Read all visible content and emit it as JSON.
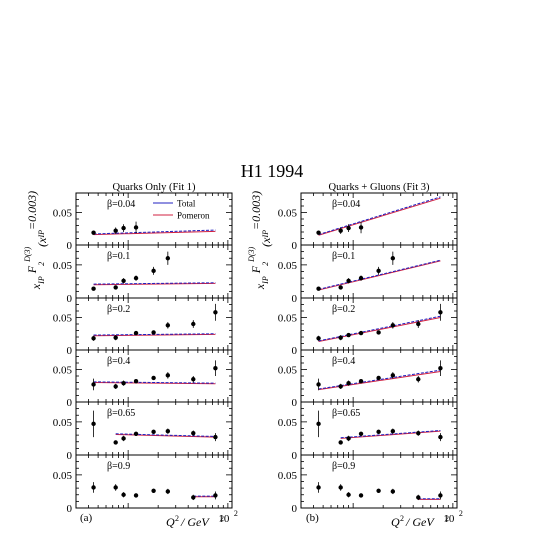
{
  "title": "H1 1994",
  "ylabel": {
    "parts": [
      "x",
      "IP",
      " F",
      "2",
      "D(3)",
      "(x",
      "IP",
      "=0.003)"
    ]
  },
  "xlabel": {
    "q": "Q",
    "sup": "2",
    "slash": "/ GeV",
    "sup2": "2"
  },
  "tick_labels": {
    "y": [
      "0.05",
      "0"
    ],
    "x_exp_base": "10",
    "x_exp_power": "2"
  },
  "legend": {
    "total": "Total",
    "pomeron": "Pomeron"
  },
  "colors": {
    "total": "#2020c0",
    "pomeron": "#d02040",
    "points": "#000000"
  },
  "chart_data": [
    {
      "type": "scatter",
      "panel_label": "(a)",
      "title": "Quarks Only (Fit 1)",
      "xscale": "log",
      "xlim": [
        3,
        110
      ],
      "ylim": [
        0,
        0.08
      ],
      "rows": [
        {
          "beta_label": "β=0.04",
          "points": [
            {
              "x": 4.5,
              "y": 0.019,
              "err": 0.003
            },
            {
              "x": 7.5,
              "y": 0.022,
              "err": 0.005
            },
            {
              "x": 9,
              "y": 0.026,
              "err": 0.006
            },
            {
              "x": 12,
              "y": 0.027,
              "err": 0.009
            }
          ],
          "total_line": [
            [
              4.5,
              0.017
            ],
            [
              75,
              0.023
            ]
          ],
          "pomeron_line": [
            [
              4.5,
              0.016
            ],
            [
              75,
              0.021
            ]
          ]
        },
        {
          "beta_label": "β=0.1",
          "points": [
            {
              "x": 4.5,
              "y": 0.014,
              "err": 0.002
            },
            {
              "x": 7.5,
              "y": 0.016,
              "err": 0.003
            },
            {
              "x": 9,
              "y": 0.026,
              "err": 0.004
            },
            {
              "x": 12,
              "y": 0.03,
              "err": 0.004
            },
            {
              "x": 18,
              "y": 0.041,
              "err": 0.006
            },
            {
              "x": 25,
              "y": 0.06,
              "err": 0.01
            }
          ],
          "total_line": [
            [
              4.5,
              0.021
            ],
            [
              75,
              0.023
            ]
          ],
          "pomeron_line": [
            [
              4.5,
              0.02
            ],
            [
              75,
              0.022
            ]
          ]
        },
        {
          "beta_label": "β=0.2",
          "points": [
            {
              "x": 4.5,
              "y": 0.018,
              "err": 0.004
            },
            {
              "x": 7.5,
              "y": 0.019,
              "err": 0.004
            },
            {
              "x": 12,
              "y": 0.026,
              "err": 0.003
            },
            {
              "x": 18,
              "y": 0.027,
              "err": 0.003
            },
            {
              "x": 25,
              "y": 0.038,
              "err": 0.005
            },
            {
              "x": 45,
              "y": 0.04,
              "err": 0.006
            },
            {
              "x": 75,
              "y": 0.058,
              "err": 0.013
            }
          ],
          "total_line": [
            [
              4.5,
              0.023
            ],
            [
              75,
              0.025
            ]
          ],
          "pomeron_line": [
            [
              4.5,
              0.022
            ],
            [
              75,
              0.024
            ]
          ]
        },
        {
          "beta_label": "β=0.4",
          "points": [
            {
              "x": 4.5,
              "y": 0.027,
              "err": 0.009
            },
            {
              "x": 7.5,
              "y": 0.024,
              "err": 0.004
            },
            {
              "x": 9,
              "y": 0.029,
              "err": 0.004
            },
            {
              "x": 12,
              "y": 0.032,
              "err": 0.003
            },
            {
              "x": 18,
              "y": 0.037,
              "err": 0.003
            },
            {
              "x": 25,
              "y": 0.041,
              "err": 0.005
            },
            {
              "x": 45,
              "y": 0.035,
              "err": 0.005
            },
            {
              "x": 75,
              "y": 0.052,
              "err": 0.012
            }
          ],
          "total_line": [
            [
              4.5,
              0.031
            ],
            [
              75,
              0.029
            ]
          ],
          "pomeron_line": [
            [
              4.5,
              0.03
            ],
            [
              75,
              0.028
            ]
          ]
        },
        {
          "beta_label": "β=0.65",
          "points": [
            {
              "x": 4.5,
              "y": 0.047,
              "err": 0.02
            },
            {
              "x": 7.5,
              "y": 0.019,
              "err": 0.003
            },
            {
              "x": 9,
              "y": 0.025,
              "err": 0.004
            },
            {
              "x": 12,
              "y": 0.032,
              "err": 0.003
            },
            {
              "x": 18,
              "y": 0.035,
              "err": 0.003
            },
            {
              "x": 25,
              "y": 0.036,
              "err": 0.004
            },
            {
              "x": 45,
              "y": 0.033,
              "err": 0.004
            },
            {
              "x": 75,
              "y": 0.027,
              "err": 0.006
            }
          ],
          "total_line": [
            [
              7.5,
              0.032
            ],
            [
              75,
              0.028
            ]
          ],
          "pomeron_line": [
            [
              7.5,
              0.031
            ],
            [
              75,
              0.027
            ]
          ]
        },
        {
          "beta_label": "β=0.9",
          "points": [
            {
              "x": 4.5,
              "y": 0.031,
              "err": 0.008
            },
            {
              "x": 7.5,
              "y": 0.031,
              "err": 0.005
            },
            {
              "x": 9,
              "y": 0.02,
              "err": 0.004
            },
            {
              "x": 12,
              "y": 0.019,
              "err": 0.003
            },
            {
              "x": 18,
              "y": 0.026,
              "err": 0.003
            },
            {
              "x": 25,
              "y": 0.025,
              "err": 0.004
            },
            {
              "x": 45,
              "y": 0.016,
              "err": 0.004
            },
            {
              "x": 75,
              "y": 0.019,
              "err": 0.006
            }
          ],
          "total_line": [
            [
              45,
              0.018
            ],
            [
              75,
              0.018
            ]
          ],
          "pomeron_line": [
            [
              45,
              0.017
            ],
            [
              75,
              0.017
            ]
          ]
        }
      ]
    },
    {
      "type": "scatter",
      "panel_label": "(b)",
      "title": "Quarks + Gluons (Fit 3)",
      "xscale": "log",
      "xlim": [
        3,
        110
      ],
      "ylim": [
        0,
        0.08
      ],
      "rows": [
        {
          "beta_label": "β=0.04",
          "points": [
            {
              "x": 4.5,
              "y": 0.019,
              "err": 0.003
            },
            {
              "x": 7.5,
              "y": 0.022,
              "err": 0.005
            },
            {
              "x": 9,
              "y": 0.026,
              "err": 0.006
            },
            {
              "x": 12,
              "y": 0.027,
              "err": 0.009
            }
          ],
          "total_line": [
            [
              4.5,
              0.016
            ],
            [
              75,
              0.074
            ]
          ],
          "pomeron_line": [
            [
              4.5,
              0.015
            ],
            [
              75,
              0.072
            ]
          ]
        },
        {
          "beta_label": "β=0.1",
          "points": [
            {
              "x": 4.5,
              "y": 0.014,
              "err": 0.002
            },
            {
              "x": 7.5,
              "y": 0.016,
              "err": 0.003
            },
            {
              "x": 9,
              "y": 0.026,
              "err": 0.004
            },
            {
              "x": 12,
              "y": 0.03,
              "err": 0.004
            },
            {
              "x": 18,
              "y": 0.041,
              "err": 0.006
            },
            {
              "x": 25,
              "y": 0.06,
              "err": 0.01
            }
          ],
          "total_line": [
            [
              4.5,
              0.013
            ],
            [
              75,
              0.057
            ]
          ],
          "pomeron_line": [
            [
              4.5,
              0.012
            ],
            [
              75,
              0.056
            ]
          ]
        },
        {
          "beta_label": "β=0.2",
          "points": [
            {
              "x": 4.5,
              "y": 0.018,
              "err": 0.004
            },
            {
              "x": 7.5,
              "y": 0.019,
              "err": 0.004
            },
            {
              "x": 9,
              "y": 0.023,
              "err": 0.003
            },
            {
              "x": 12,
              "y": 0.026,
              "err": 0.003
            },
            {
              "x": 18,
              "y": 0.027,
              "err": 0.003
            },
            {
              "x": 25,
              "y": 0.038,
              "err": 0.005
            },
            {
              "x": 45,
              "y": 0.04,
              "err": 0.006
            },
            {
              "x": 75,
              "y": 0.058,
              "err": 0.013
            }
          ],
          "total_line": [
            [
              4.5,
              0.014
            ],
            [
              75,
              0.052
            ]
          ],
          "pomeron_line": [
            [
              4.5,
              0.013
            ],
            [
              75,
              0.05
            ]
          ]
        },
        {
          "beta_label": "β=0.4",
          "points": [
            {
              "x": 4.5,
              "y": 0.027,
              "err": 0.009
            },
            {
              "x": 7.5,
              "y": 0.024,
              "err": 0.004
            },
            {
              "x": 9,
              "y": 0.029,
              "err": 0.004
            },
            {
              "x": 12,
              "y": 0.032,
              "err": 0.003
            },
            {
              "x": 18,
              "y": 0.037,
              "err": 0.003
            },
            {
              "x": 25,
              "y": 0.041,
              "err": 0.005
            },
            {
              "x": 45,
              "y": 0.035,
              "err": 0.005
            },
            {
              "x": 75,
              "y": 0.052,
              "err": 0.012
            }
          ],
          "total_line": [
            [
              4.5,
              0.02
            ],
            [
              75,
              0.049
            ]
          ],
          "pomeron_line": [
            [
              4.5,
              0.019
            ],
            [
              75,
              0.047
            ]
          ]
        },
        {
          "beta_label": "β=0.65",
          "points": [
            {
              "x": 4.5,
              "y": 0.047,
              "err": 0.02
            },
            {
              "x": 7.5,
              "y": 0.019,
              "err": 0.003
            },
            {
              "x": 9,
              "y": 0.025,
              "err": 0.004
            },
            {
              "x": 12,
              "y": 0.032,
              "err": 0.003
            },
            {
              "x": 18,
              "y": 0.035,
              "err": 0.003
            },
            {
              "x": 25,
              "y": 0.036,
              "err": 0.004
            },
            {
              "x": 45,
              "y": 0.033,
              "err": 0.004
            },
            {
              "x": 75,
              "y": 0.027,
              "err": 0.006
            }
          ],
          "total_line": [
            [
              7.5,
              0.026
            ],
            [
              75,
              0.037
            ]
          ],
          "pomeron_line": [
            [
              7.5,
              0.025
            ],
            [
              75,
              0.036
            ]
          ]
        },
        {
          "beta_label": "β=0.9",
          "points": [
            {
              "x": 4.5,
              "y": 0.031,
              "err": 0.008
            },
            {
              "x": 7.5,
              "y": 0.031,
              "err": 0.005
            },
            {
              "x": 9,
              "y": 0.02,
              "err": 0.004
            },
            {
              "x": 12,
              "y": 0.019,
              "err": 0.003
            },
            {
              "x": 18,
              "y": 0.026,
              "err": 0.003
            },
            {
              "x": 25,
              "y": 0.025,
              "err": 0.004
            },
            {
              "x": 45,
              "y": 0.016,
              "err": 0.004
            },
            {
              "x": 75,
              "y": 0.019,
              "err": 0.006
            }
          ],
          "total_line": [
            [
              45,
              0.014
            ],
            [
              75,
              0.014
            ]
          ],
          "pomeron_line": [
            [
              45,
              0.013
            ],
            [
              75,
              0.013
            ]
          ]
        }
      ]
    }
  ]
}
